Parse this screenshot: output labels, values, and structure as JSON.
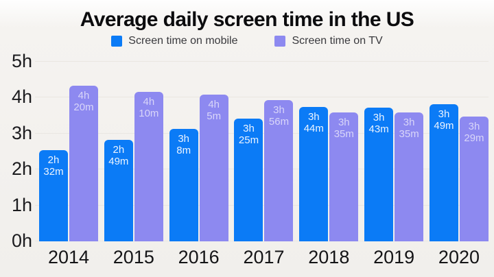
{
  "title": "Average daily screen time in the US",
  "legend": [
    {
      "label": "Screen time on mobile",
      "color": "#0b7bf6"
    },
    {
      "label": "Screen time on TV",
      "color": "#8d89f0"
    }
  ],
  "colors": {
    "background": "#f1efec",
    "grid": "#e9e6e1",
    "title_text": "#0c0c0e",
    "legend_text": "#39393d",
    "axis_text": "#1c1c1f",
    "mobile_bar": "#0b7bf6",
    "tv_bar": "#8d89f0",
    "mobile_bar_label": "#ecf4ff",
    "tv_bar_label": "#d9d6f9"
  },
  "chart_data": {
    "type": "bar",
    "title": "Average daily screen time in the US",
    "categories": [
      "2014",
      "2015",
      "2016",
      "2017",
      "2018",
      "2019",
      "2020"
    ],
    "series": [
      {
        "name": "Screen time on mobile",
        "color": "#0b7bf6",
        "label_color": "#ecf4ff",
        "values_minutes": [
          152,
          169,
          188,
          205,
          224,
          223,
          229
        ],
        "labels": [
          "2h 32m",
          "2h 49m",
          "3h 8m",
          "3h 25m",
          "3h 44m",
          "3h 43m",
          "3h 49m"
        ]
      },
      {
        "name": "Screen time on TV",
        "color": "#8d89f0",
        "label_color": "#d9d6f9",
        "values_minutes": [
          260,
          250,
          245,
          236,
          215,
          215,
          209
        ],
        "labels": [
          "4h 20m",
          "4h 10m",
          "4h 5m",
          "3h 56m",
          "3h 35m",
          "3h 35m",
          "3h 29m"
        ]
      }
    ],
    "yticks": [
      "0h",
      "1h",
      "2h",
      "3h",
      "4h",
      "5h"
    ],
    "ylim_hours": [
      0,
      5
    ],
    "unit": "hours",
    "grid": true,
    "legend_position": "top"
  }
}
